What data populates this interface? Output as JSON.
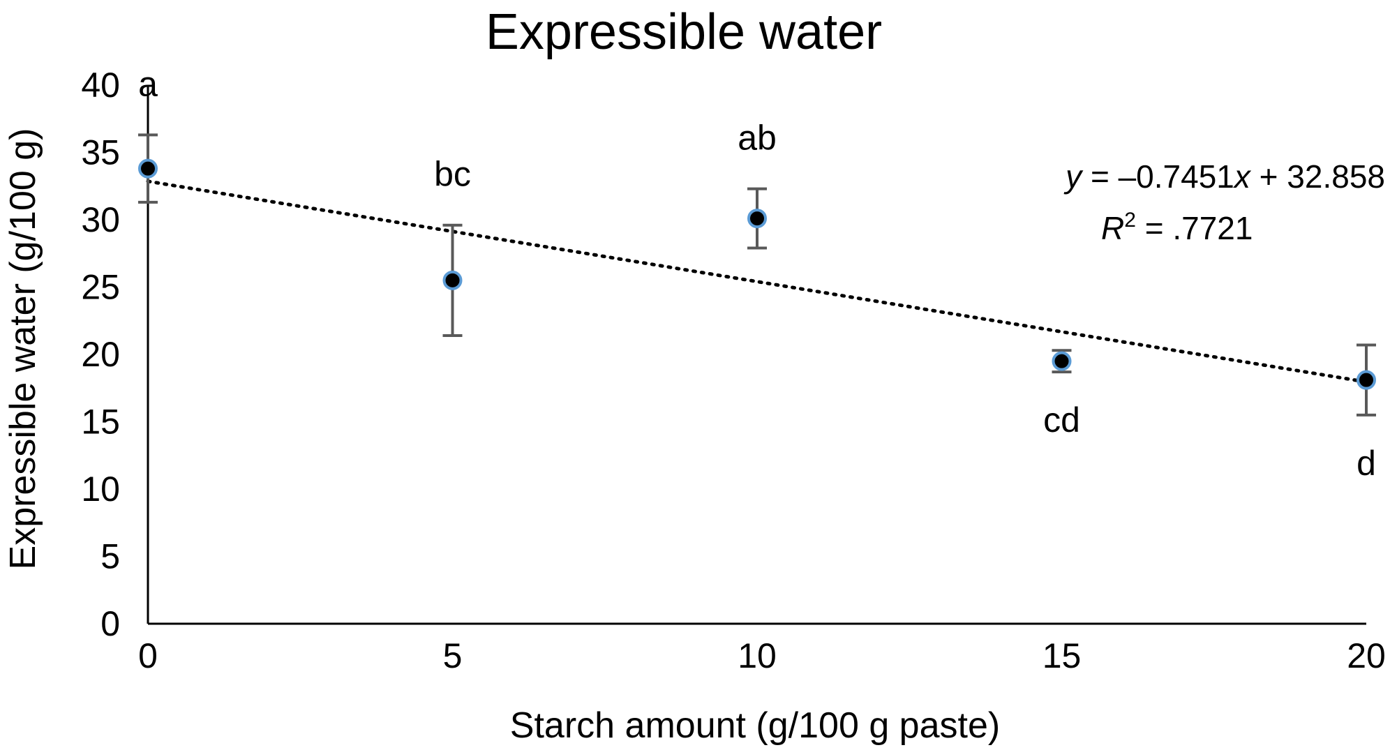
{
  "chart_data": {
    "type": "scatter",
    "title": "Expressible water",
    "xlabel": "Starch amount (g/100 g paste)",
    "ylabel": "Expressible water (g/100 g)",
    "xlim": [
      0,
      20
    ],
    "ylim": [
      0,
      40
    ],
    "x_ticks": [
      "0",
      "5",
      "10",
      "15",
      "20"
    ],
    "y_ticks": [
      "0",
      "5",
      "10",
      "15",
      "20",
      "25",
      "30",
      "35",
      "40"
    ],
    "grid": false,
    "legend": "none",
    "series": [
      {
        "x": [
          0,
          5,
          10,
          15,
          20
        ],
        "y": [
          33.8,
          25.5,
          30.1,
          19.5,
          18.1
        ],
        "error": [
          2.5,
          4.1,
          2.2,
          0.8,
          2.6
        ],
        "group_labels": [
          "a",
          "bc",
          "ab",
          "cd",
          "d"
        ],
        "marker_fill": "#000000",
        "marker_edge": "#5b9bd5"
      }
    ],
    "trendline": {
      "type": "linear",
      "slope": -0.7451,
      "intercept": 32.858,
      "style": "dotted",
      "equation_prefix": "y",
      "equation_text": " = –0.7451",
      "equation_var": "x",
      "equation_suffix": " + 32.858",
      "r2_var": "R",
      "r2_sup": "2",
      "r2_text": " = .7721"
    },
    "colors": {
      "axis": "#000000",
      "error_bar": "#595959",
      "trendline": "#000000"
    }
  }
}
